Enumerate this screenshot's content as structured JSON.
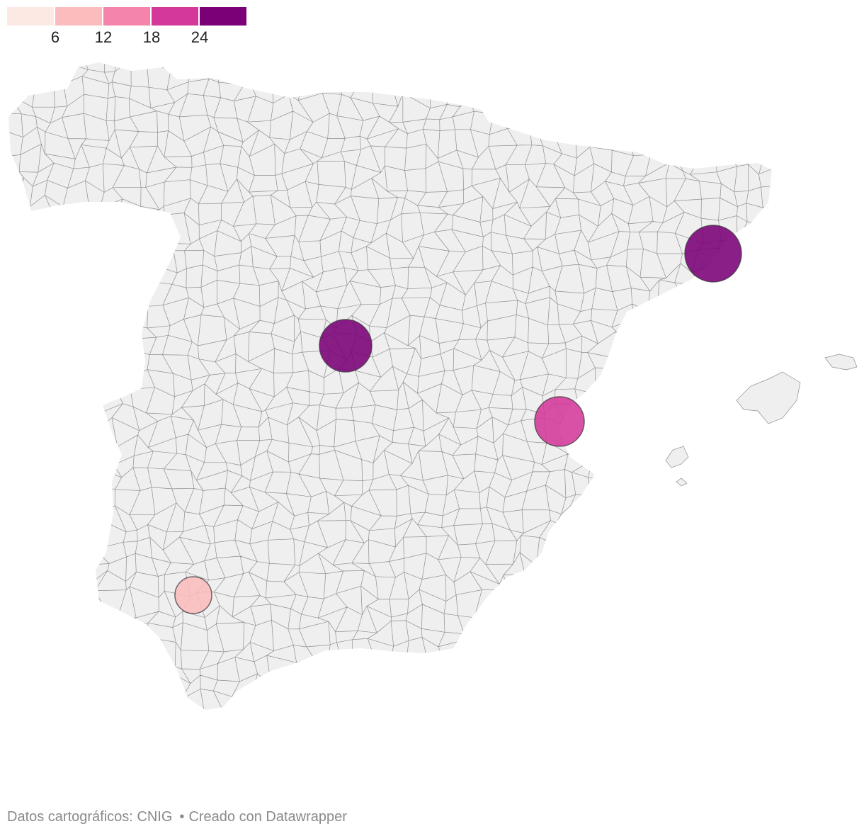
{
  "legend": {
    "colors": [
      "#fde9e3",
      "#fbbcbd",
      "#f584ad",
      "#d4399a",
      "#7b0077"
    ],
    "ticks": [
      "6",
      "12",
      "18",
      "24"
    ]
  },
  "map": {
    "base_fill": "#efefef",
    "border_color": "#8f8f8f",
    "symbols": [
      {
        "value": 24,
        "color": "#7b0077"
      },
      {
        "value": 24,
        "color": "#7b0077"
      },
      {
        "value": 18,
        "color": "#d4399a"
      },
      {
        "value": 9,
        "color": "#fbbcbd"
      }
    ]
  },
  "footer": {
    "source": "Datos cartográficos: CNIG",
    "credit": "Creado con Datawrapper",
    "separator": "•"
  }
}
